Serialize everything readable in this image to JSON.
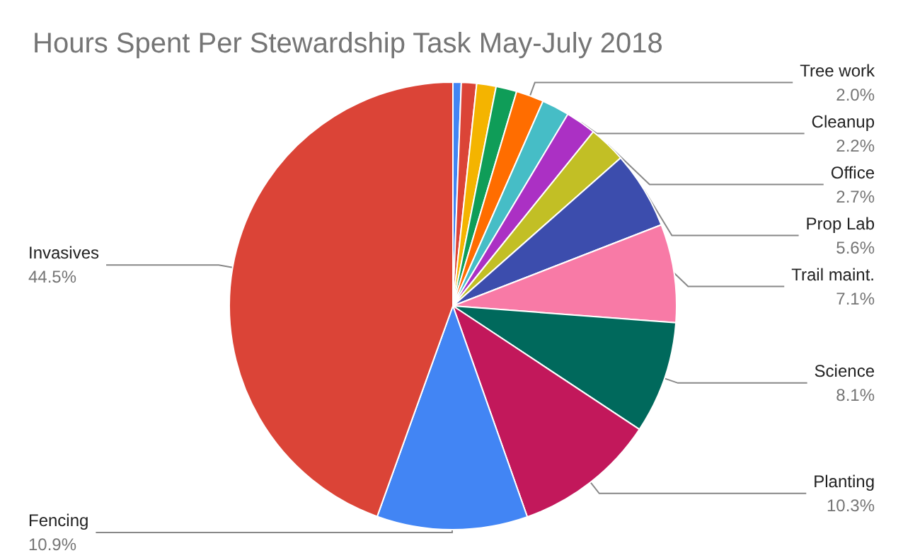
{
  "chart_data": {
    "type": "pie",
    "title": "Hours Spent Per Stewardship Task May-July 2018",
    "categories": [
      null,
      null,
      null,
      null,
      "Tree work",
      null,
      "Cleanup",
      "Office",
      "Prop Lab",
      "Trail maint.",
      "Science",
      "Planting",
      "Fencing",
      "Invasives"
    ],
    "values": [
      0.6,
      1.1,
      1.4,
      1.5,
      2.0,
      2.0,
      2.2,
      2.7,
      5.6,
      7.1,
      8.1,
      10.3,
      10.9,
      44.5
    ],
    "value_labels": [
      null,
      null,
      null,
      null,
      "2.0%",
      null,
      "2.2%",
      "2.7%",
      "5.6%",
      "7.1%",
      "8.1%",
      "10.3%",
      "10.9%",
      "44.5%"
    ],
    "colors": [
      "#4285f4",
      "#db4437",
      "#f4b400",
      "#0f9d58",
      "#ff6d00",
      "#46bdc6",
      "#ab30c4",
      "#c2bf25",
      "#3c4dad",
      "#f87aa6",
      "#00695c",
      "#c2185b",
      "#4285f4",
      "#db4437"
    ],
    "legend": false
  }
}
